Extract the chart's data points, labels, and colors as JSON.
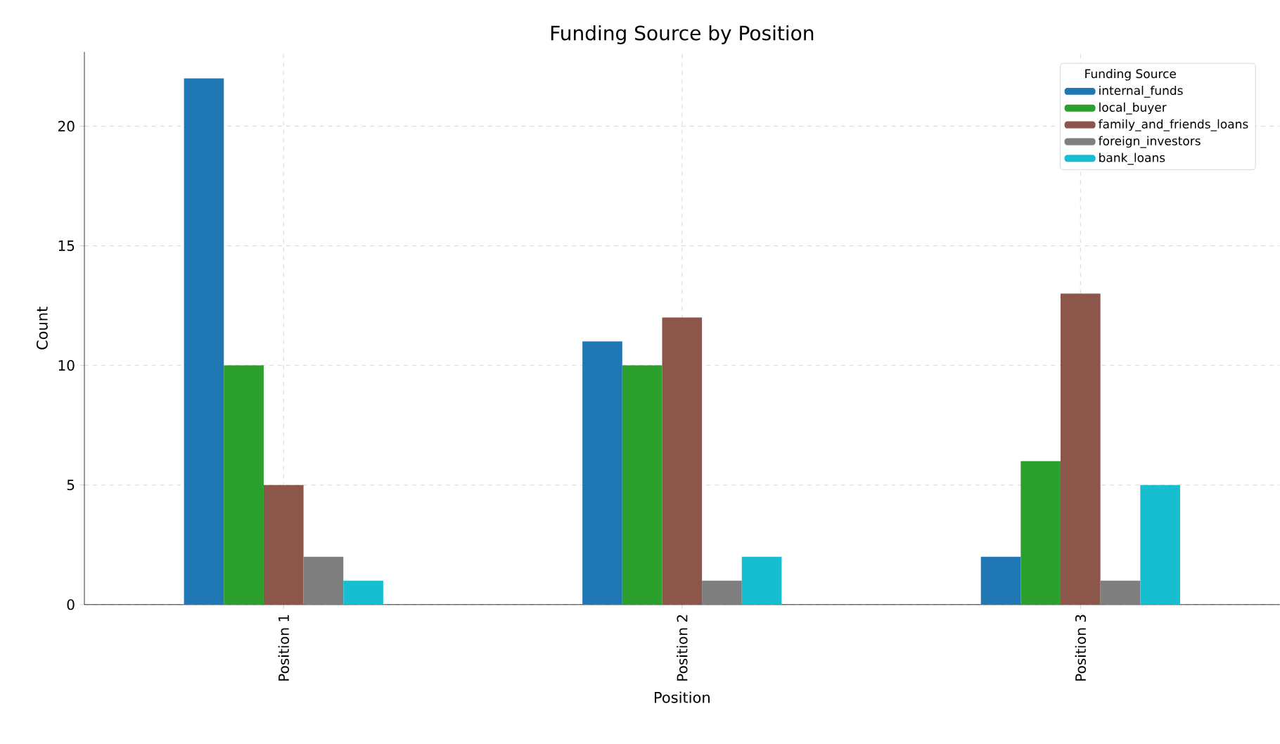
{
  "chart_data": {
    "type": "bar",
    "title": "Funding Source by Position",
    "xlabel": "Position",
    "ylabel": "Count",
    "legend_title": "Funding Source",
    "categories": [
      "Position 1",
      "Position 2",
      "Position 3"
    ],
    "series": [
      {
        "name": "internal_funds",
        "color": "#1f77b4",
        "values": [
          22,
          11,
          2
        ]
      },
      {
        "name": "local_buyer",
        "color": "#2ca02c",
        "values": [
          10,
          10,
          6
        ]
      },
      {
        "name": "family_and_friends_loans",
        "color": "#8c564b",
        "values": [
          5,
          12,
          13
        ]
      },
      {
        "name": "foreign_investors",
        "color": "#7f7f7f",
        "values": [
          2,
          1,
          1
        ]
      },
      {
        "name": "bank_loans",
        "color": "#17becf",
        "values": [
          1,
          2,
          5
        ]
      }
    ],
    "ylim": [
      0,
      23.1
    ],
    "yticks": [
      0,
      5,
      10,
      15,
      20
    ],
    "grid": true,
    "legend": "top right"
  }
}
